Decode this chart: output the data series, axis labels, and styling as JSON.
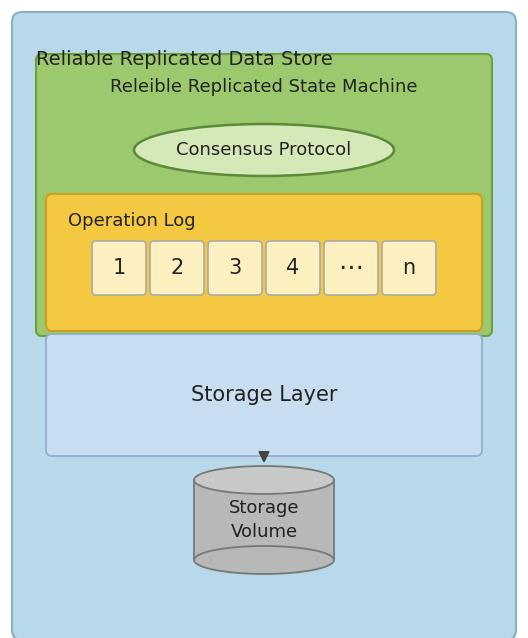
{
  "title": "Reliable Replicated Data Store",
  "outer_box_color": "#b8d9ea",
  "outer_box_edge": "#8ab0c8",
  "green_box_color": "#9dc96e",
  "green_box_edge": "#6ea042",
  "yellow_box_color": "#f5c842",
  "yellow_box_edge": "#c8a020",
  "storage_layer_color": "#c8ddf0",
  "storage_layer_edge": "#90aac8",
  "consensus_ellipse_color": "#d4e8b8",
  "consensus_ellipse_edge": "#5a8a3a",
  "log_box_color": "#fdf0c0",
  "log_box_edge": "#aaaaaa",
  "cylinder_color": "#b8b8b8",
  "cylinder_top_color": "#c8c8c8",
  "cylinder_edge": "#787878",
  "state_machine_label": "Releible Replicated State Machine",
  "consensus_label": "Consensus Protocol",
  "operation_log_label": "Operation Log",
  "log_entries": [
    "1",
    "2",
    "3",
    "4",
    "⋯",
    "n"
  ],
  "storage_layer_label": "Storage Layer",
  "storage_volume_label": "Storage\nVolume",
  "bg_color": "#ffffff",
  "arrow_color": "#444444"
}
